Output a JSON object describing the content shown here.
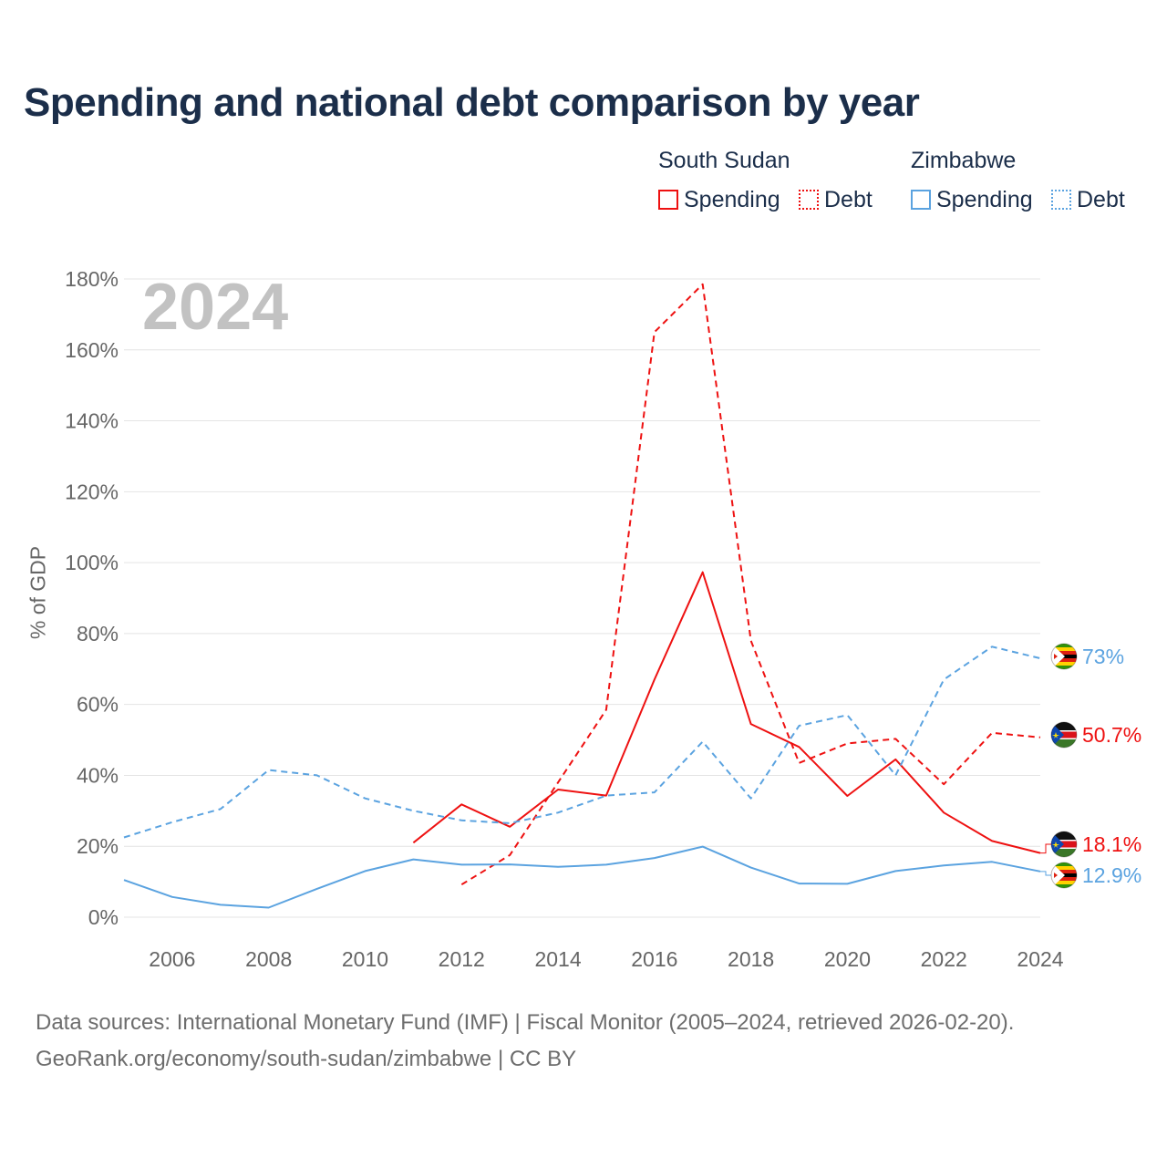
{
  "title": "Spending and national debt comparison by year",
  "year_watermark": "2024",
  "legend": {
    "groups": [
      {
        "country": "South Sudan",
        "color": "#ee1111",
        "items": [
          {
            "label": "Spending",
            "style": "solid"
          },
          {
            "label": "Debt",
            "style": "dotted"
          }
        ]
      },
      {
        "country": "Zimbabwe",
        "color": "#5ba3e0",
        "items": [
          {
            "label": "Spending",
            "style": "solid"
          },
          {
            "label": "Debt",
            "style": "dotted"
          }
        ]
      }
    ]
  },
  "footer": {
    "line1": "Data sources: International Monetary Fund (IMF) | Fiscal Monitor (2005–2024, retrieved 2026-02-20).",
    "line2": "GeoRank.org/economy/south-sudan/zimbabwe | CC BY"
  },
  "chart_data": {
    "type": "line",
    "ylabel": "% of GDP",
    "xlabel": "",
    "xlim": [
      2005,
      2024
    ],
    "ylim": [
      0,
      180
    ],
    "x_ticks": [
      2006,
      2008,
      2010,
      2012,
      2014,
      2016,
      2018,
      2020,
      2022,
      2024
    ],
    "y_ticks": [
      0,
      20,
      40,
      60,
      80,
      100,
      120,
      140,
      160,
      180
    ],
    "y_tick_labels": [
      "0%",
      "20%",
      "40%",
      "60%",
      "80%",
      "100%",
      "120%",
      "140%",
      "160%",
      "180%"
    ],
    "grid": true,
    "series": [
      {
        "name": "South Sudan Spending",
        "country": "South Sudan",
        "metric": "Spending",
        "color": "#ee1111",
        "dash": "solid",
        "x": [
          2011,
          2012,
          2013,
          2014,
          2015,
          2016,
          2017,
          2018,
          2019,
          2020,
          2021,
          2022,
          2023,
          2024
        ],
        "values": [
          21,
          31.8,
          25.5,
          36,
          34.3,
          67,
          97.3,
          54.5,
          48,
          34.2,
          44.5,
          29.5,
          21.5,
          18.1
        ],
        "end_label": "18.1%"
      },
      {
        "name": "South Sudan Debt",
        "country": "South Sudan",
        "metric": "Debt",
        "color": "#ee1111",
        "dash": "dashed",
        "x": [
          2012,
          2013,
          2014,
          2015,
          2016,
          2017,
          2018,
          2019,
          2020,
          2021,
          2022,
          2023,
          2024
        ],
        "values": [
          9.2,
          17.5,
          38,
          58.5,
          165,
          178.5,
          78,
          43.5,
          49,
          50.3,
          37.5,
          52,
          50.7
        ],
        "end_label": "50.7%"
      },
      {
        "name": "Zimbabwe Spending",
        "country": "Zimbabwe",
        "metric": "Spending",
        "color": "#5ba3e0",
        "dash": "solid",
        "x": [
          2005,
          2006,
          2007,
          2008,
          2009,
          2010,
          2011,
          2012,
          2013,
          2014,
          2015,
          2016,
          2017,
          2018,
          2019,
          2020,
          2021,
          2022,
          2023,
          2024
        ],
        "values": [
          10.5,
          5.7,
          3.5,
          2.7,
          8,
          13,
          16.3,
          14.8,
          14.9,
          14.2,
          14.8,
          16.7,
          19.9,
          14,
          9.5,
          9.4,
          13,
          14.6,
          15.6,
          12.9
        ],
        "end_label": "12.9%"
      },
      {
        "name": "Zimbabwe Debt",
        "country": "Zimbabwe",
        "metric": "Debt",
        "color": "#5ba3e0",
        "dash": "dashed",
        "x": [
          2005,
          2006,
          2007,
          2008,
          2009,
          2010,
          2011,
          2012,
          2013,
          2014,
          2015,
          2016,
          2017,
          2018,
          2019,
          2020,
          2021,
          2022,
          2023,
          2024
        ],
        "values": [
          22.5,
          26.8,
          30.5,
          41.5,
          40,
          33.5,
          30,
          27.3,
          26.5,
          29.5,
          34.3,
          35.2,
          49.5,
          33.5,
          54,
          57,
          40,
          67,
          76.3,
          73
        ],
        "end_label": "73%"
      }
    ]
  }
}
